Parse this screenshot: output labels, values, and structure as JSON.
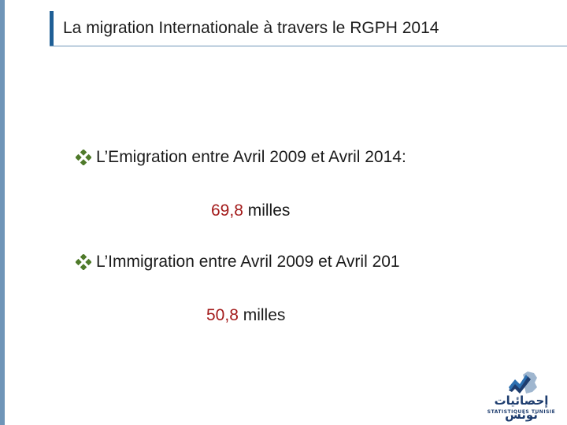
{
  "title": "La migration Internationale à travers le RGPH 2014",
  "items": [
    {
      "text": "L’Emigration entre  Avril 2009 et Avril 2014:",
      "value": "69,8",
      "unit": " milles"
    },
    {
      "text": "L’Immigration entre  Avril 2009 et Avril 201",
      "value": "50,8",
      "unit": " milles"
    }
  ],
  "logo": {
    "arabic": "إحصائيات تونس",
    "subtitle": "STATISTIQUES TUNISIE"
  },
  "colors": {
    "accent": "#1f5f96",
    "value": "#a31a1a",
    "bullet": "#4f7a2a"
  }
}
